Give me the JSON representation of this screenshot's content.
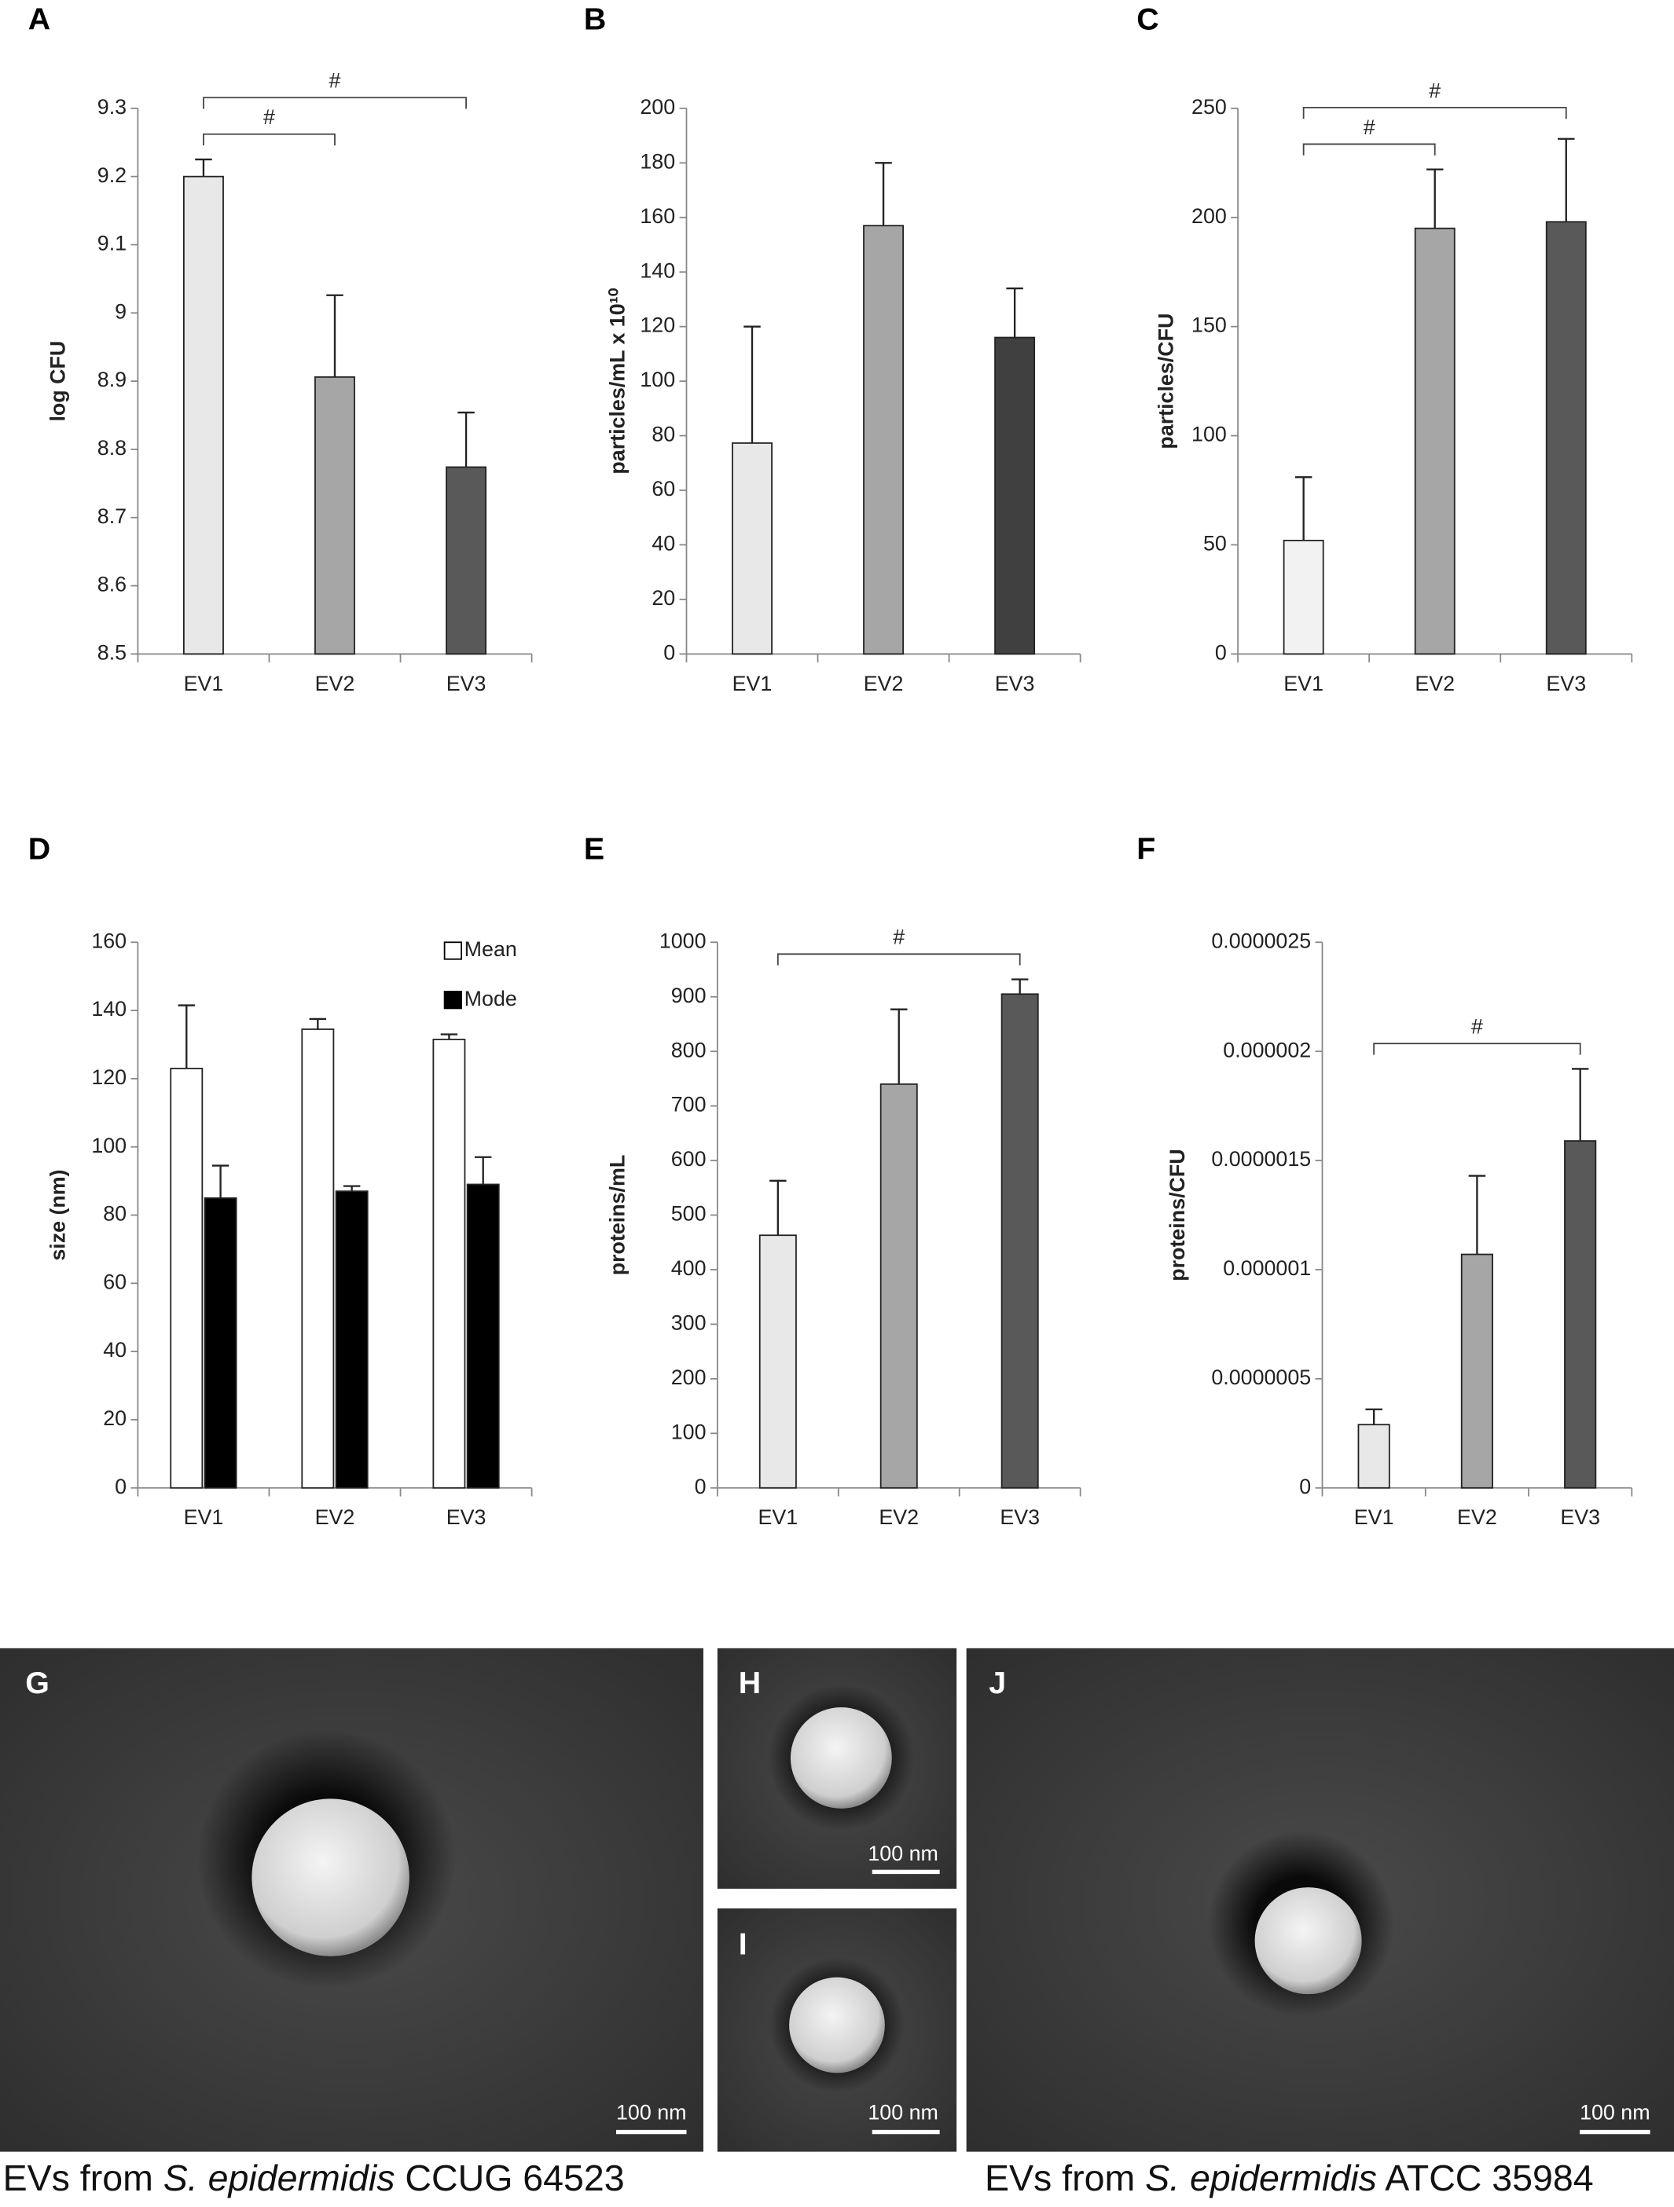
{
  "chart_data": [
    {
      "type": "bar",
      "label": "A",
      "y_label": "log CFU",
      "categories": [
        "EV1",
        "EV2",
        "EV3"
      ],
      "values": [
        9.2,
        8.906,
        8.774
      ],
      "errors": [
        0.025,
        0.12,
        0.08
      ],
      "colors": [
        "#e8e8e8",
        "#a6a6a6",
        "#595959"
      ],
      "ylim": [
        8.5,
        9.3
      ],
      "yticks": [
        8.5,
        8.6,
        8.7,
        8.8,
        8.9,
        9,
        9.1,
        9.2,
        9.3
      ],
      "brackets": [
        {
          "label": "#",
          "categories": [
            "EV1",
            "EV2"
          ]
        },
        {
          "label": "#",
          "categories": [
            "EV1",
            "EV3"
          ]
        }
      ]
    },
    {
      "type": "bar",
      "label": "B",
      "y_label": "particles/mL x 10¹⁰",
      "categories": [
        "EV1",
        "EV2",
        "EV3"
      ],
      "values": [
        77.3,
        157,
        116
      ],
      "errors": [
        42.7,
        23,
        18
      ],
      "colors": [
        "#e8e8e8",
        "#a6a6a6",
        "#404040"
      ],
      "ylim": [
        0,
        200
      ],
      "yticks": [
        0,
        20,
        40,
        60,
        80,
        100,
        120,
        140,
        160,
        180,
        200
      ],
      "brackets": []
    },
    {
      "type": "bar",
      "label": "C",
      "y_label": "particles/CFU",
      "categories": [
        "EV1",
        "EV2",
        "EV3"
      ],
      "values": [
        52,
        195,
        198
      ],
      "errors": [
        29,
        27,
        38
      ],
      "colors": [
        "#f2f2f2",
        "#a6a6a6",
        "#595959"
      ],
      "ylim": [
        0,
        250
      ],
      "yticks": [
        0,
        50,
        100,
        150,
        200,
        250
      ],
      "brackets": [
        {
          "label": "#",
          "categories": [
            "EV1",
            "EV2"
          ]
        },
        {
          "label": "#",
          "categories": [
            "EV1",
            "EV3"
          ]
        }
      ]
    },
    {
      "type": "bar",
      "label": "D",
      "y_label": "size (nm)",
      "categories": [
        "EV1",
        "EV2",
        "EV3"
      ],
      "series": [
        {
          "name": "Mean",
          "color": "#ffffff",
          "values": [
            123,
            134.5,
            131.5
          ],
          "errors": [
            18.5,
            3,
            1.5
          ]
        },
        {
          "name": "Mode",
          "color": "#000000",
          "values": [
            85,
            87,
            89
          ],
          "errors": [
            9.5,
            1.5,
            8
          ]
        }
      ],
      "legend": "top-right",
      "ylim": [
        0,
        160
      ],
      "yticks": [
        0,
        20,
        40,
        60,
        80,
        100,
        120,
        140,
        160
      ],
      "brackets": []
    },
    {
      "type": "bar",
      "label": "E",
      "y_label": "proteins/mL",
      "categories": [
        "EV1",
        "EV2",
        "EV3"
      ],
      "values": [
        463,
        740,
        905
      ],
      "errors": [
        100,
        137,
        27
      ],
      "colors": [
        "#e8e8e8",
        "#a6a6a6",
        "#595959"
      ],
      "ylim": [
        0,
        1000
      ],
      "yticks": [
        0,
        100,
        200,
        300,
        400,
        500,
        600,
        700,
        800,
        900,
        1000
      ],
      "brackets": [
        {
          "label": "#",
          "categories": [
            "EV1",
            "EV3"
          ]
        }
      ]
    },
    {
      "type": "bar",
      "label": "F",
      "y_label": "proteins/CFU",
      "categories": [
        "EV1",
        "EV2",
        "EV3"
      ],
      "values": [
        2.9e-07,
        1.07e-06,
        1.59e-06
      ],
      "errors": [
        7e-08,
        3.6e-07,
        3.3e-07
      ],
      "colors": [
        "#e8e8e8",
        "#a6a6a6",
        "#595959"
      ],
      "ylim": [
        0,
        2.5e-06
      ],
      "yticks": [
        0,
        {
          "value": 5e-07,
          "label": "0.0000005"
        },
        1e-06,
        1.5e-06,
        2e-06,
        2.5e-06
      ],
      "brackets": [
        {
          "label": "#",
          "categories": [
            "EV1",
            "EV3"
          ]
        }
      ]
    }
  ],
  "micrographs": [
    {
      "label": "G",
      "scale_bar": "100 nm"
    },
    {
      "label": "H",
      "scale_bar": "100 nm"
    },
    {
      "label": "I",
      "scale_bar": "100 nm"
    },
    {
      "label": "J",
      "scale_bar": "100 nm"
    }
  ],
  "captions": [
    {
      "prefix": "EVs from ",
      "species": "S. epidermidis",
      "strain": " CCUG 64523"
    },
    {
      "prefix": "EVs from ",
      "species": "S. epidermidis",
      "strain": " ATCC 35984"
    }
  ]
}
